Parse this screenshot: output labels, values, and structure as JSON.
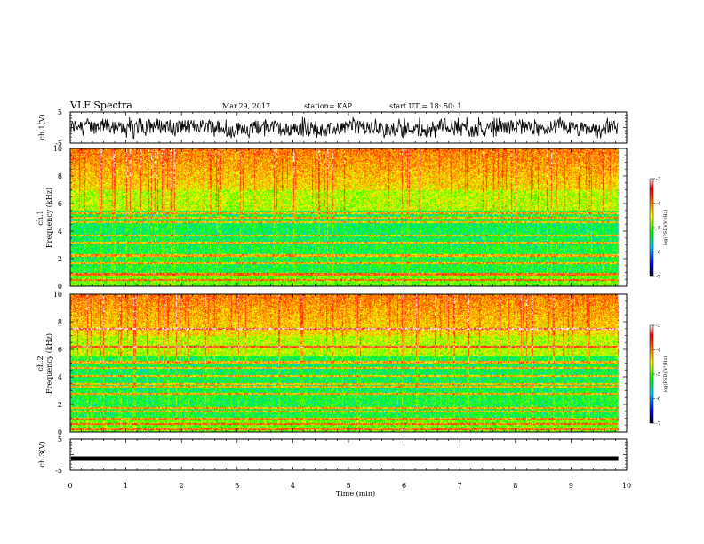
{
  "header": {
    "title": "VLF Spectra",
    "date": "Mar.29, 2017",
    "station": "station= KAP",
    "start": "start  UT =   18: 50: 1"
  },
  "chart_data": [
    {
      "type": "line",
      "name": "waveform-ch1",
      "ylabel": "ch.1(V)",
      "ylim": [
        -5,
        5
      ],
      "yticks": [
        "5",
        "-5"
      ],
      "xlim": [
        0,
        10
      ],
      "amplitude_range": [
        -3.5,
        3.5
      ],
      "data_end_min": 9.85
    },
    {
      "type": "heatmap",
      "name": "spectrogram-ch1",
      "ylabel": "ch.1",
      "ylabel2": "Frequency (kHz)",
      "ylim": [
        0,
        10
      ],
      "yticks": [
        "0",
        "2",
        "4",
        "6",
        "8",
        "10"
      ],
      "xlim": [
        0,
        10
      ],
      "data_end_min": 9.85,
      "hum_lines_khz": [
        0.5,
        0.9,
        1.7,
        2.2,
        2.3,
        3.2,
        3.7,
        4.7,
        5.0,
        5.3
      ],
      "colorbar": {
        "label": "log(PSD)(V²/Hz)",
        "range": [
          -7,
          -3
        ],
        "ticks": [
          "-3",
          "-4",
          "-5",
          "-6",
          "-7"
        ]
      }
    },
    {
      "type": "heatmap",
      "name": "spectrogram-ch2",
      "ylabel": "ch.2",
      "ylabel2": "Frequency (kHz)",
      "ylim": [
        0,
        10
      ],
      "yticks": [
        "0",
        "2",
        "4",
        "6",
        "8",
        "10"
      ],
      "xlim": [
        0,
        10
      ],
      "data_end_min": 9.85,
      "hum_lines_khz": [
        0.2,
        0.6,
        1.0,
        1.5,
        1.8,
        2.8,
        3.3,
        3.5,
        4.1,
        4.7,
        5.1,
        6.2,
        7.5
      ],
      "colorbar": {
        "label": "log(PSD)(V²/Hz)",
        "range": [
          -7,
          -3
        ],
        "ticks": [
          "-3",
          "-4",
          "-5",
          "-6",
          "-7"
        ]
      }
    },
    {
      "type": "line",
      "name": "waveform-ch3",
      "ylabel": "ch.3(V)",
      "ylim": [
        -5,
        5
      ],
      "yticks": [
        "5",
        "-5"
      ],
      "xlim": [
        0,
        10
      ],
      "constant_value": -1.3,
      "xlabel": "Time (min)",
      "xticks": [
        "0",
        "1",
        "2",
        "3",
        "4",
        "5",
        "6",
        "7",
        "8",
        "9",
        "10"
      ],
      "data_end_min": 9.85
    }
  ],
  "colors": {
    "frame": "#000000",
    "colormap": [
      "#000000",
      "#0000ff",
      "#00c8ff",
      "#00ff00",
      "#ffff00",
      "#ff8800",
      "#ff0000",
      "#ffffff"
    ]
  }
}
